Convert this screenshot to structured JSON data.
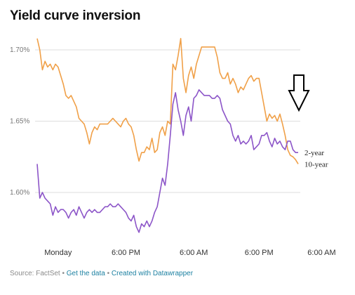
{
  "title": "Yield curve inversion",
  "footer": {
    "source": "Source: FactSet",
    "sep1": "•",
    "get_data": "Get the data",
    "sep2": "•",
    "created_with": "Created with Datawrapper"
  },
  "chart_data": {
    "type": "line",
    "title": "Yield curve inversion",
    "ylim": [
      1.58,
      1.71
    ],
    "y_ticks": [
      1.6,
      1.65,
      1.7
    ],
    "y_tick_labels": [
      "1.60%",
      "1.65%",
      "1.70%"
    ],
    "x_range": [
      0,
      100
    ],
    "x_ticks": [
      8,
      34,
      60,
      85,
      109
    ],
    "x_tick_labels": [
      "Monday",
      "6:00 PM",
      "6:00 AM",
      "6:00 PM",
      "6:00 AM"
    ],
    "grid": true,
    "annotation": "down-arrow",
    "series": [
      {
        "name": "10-year",
        "color": "#f0a048",
        "x": [
          0,
          1,
          2,
          3,
          4,
          5,
          6,
          7,
          8,
          9,
          10,
          11,
          12,
          13,
          14,
          15,
          16,
          17,
          18,
          19,
          20,
          21,
          22,
          23,
          24,
          25,
          26,
          27,
          28,
          29,
          30,
          31,
          32,
          33,
          34,
          35,
          36,
          37,
          38,
          39,
          40,
          41,
          42,
          43,
          44,
          45,
          46,
          47,
          48,
          49,
          50,
          51,
          52,
          53,
          54,
          55,
          56,
          57,
          58,
          59,
          60,
          61,
          62,
          63,
          64,
          65,
          66,
          67,
          68,
          69,
          70,
          71,
          72,
          73,
          74,
          75,
          76,
          77,
          78,
          79,
          80,
          81,
          82,
          83,
          84,
          85,
          86,
          87,
          88,
          89,
          90,
          91,
          92,
          93,
          94,
          95,
          96,
          97,
          98,
          99,
          100
        ],
        "values": [
          1.708,
          1.7,
          1.686,
          1.692,
          1.688,
          1.69,
          1.686,
          1.69,
          1.688,
          1.682,
          1.676,
          1.668,
          1.666,
          1.668,
          1.664,
          1.66,
          1.652,
          1.65,
          1.648,
          1.642,
          1.634,
          1.642,
          1.646,
          1.644,
          1.648,
          1.648,
          1.648,
          1.648,
          1.65,
          1.652,
          1.65,
          1.648,
          1.646,
          1.65,
          1.652,
          1.648,
          1.646,
          1.64,
          1.63,
          1.622,
          1.628,
          1.628,
          1.632,
          1.63,
          1.638,
          1.628,
          1.63,
          1.642,
          1.646,
          1.64,
          1.65,
          1.648,
          1.69,
          1.686,
          1.696,
          1.708,
          1.68,
          1.67,
          1.682,
          1.688,
          1.68,
          1.69,
          1.696,
          1.702,
          1.702,
          1.702,
          1.702,
          1.702,
          1.702,
          1.695,
          1.684,
          1.68,
          1.68,
          1.684,
          1.676,
          1.68,
          1.676,
          1.67,
          1.674,
          1.672,
          1.676,
          1.68,
          1.682,
          1.678,
          1.68,
          1.68,
          1.67,
          1.66,
          1.65,
          1.655,
          1.652,
          1.654,
          1.65,
          1.655,
          1.648,
          1.64,
          1.63,
          1.626,
          1.625,
          1.623,
          1.62
        ]
      },
      {
        "name": "2-year",
        "color": "#8c55c8",
        "x": [
          0,
          1,
          2,
          3,
          4,
          5,
          6,
          7,
          8,
          9,
          10,
          11,
          12,
          13,
          14,
          15,
          16,
          17,
          18,
          19,
          20,
          21,
          22,
          23,
          24,
          25,
          26,
          27,
          28,
          29,
          30,
          31,
          32,
          33,
          34,
          35,
          36,
          37,
          38,
          39,
          40,
          41,
          42,
          43,
          44,
          45,
          46,
          47,
          48,
          49,
          50,
          51,
          52,
          53,
          54,
          55,
          56,
          57,
          58,
          59,
          60,
          61,
          62,
          63,
          64,
          65,
          66,
          67,
          68,
          69,
          70,
          71,
          72,
          73,
          74,
          75,
          76,
          77,
          78,
          79,
          80,
          81,
          82,
          83,
          84,
          85,
          86,
          87,
          88,
          89,
          90,
          91,
          92,
          93,
          94,
          95,
          96,
          97,
          98,
          99,
          100
        ],
        "values": [
          1.62,
          1.596,
          1.6,
          1.596,
          1.594,
          1.592,
          1.584,
          1.59,
          1.586,
          1.588,
          1.588,
          1.586,
          1.582,
          1.586,
          1.588,
          1.584,
          1.59,
          1.586,
          1.582,
          1.586,
          1.588,
          1.586,
          1.588,
          1.586,
          1.586,
          1.588,
          1.59,
          1.59,
          1.592,
          1.59,
          1.59,
          1.592,
          1.59,
          1.588,
          1.586,
          1.582,
          1.58,
          1.584,
          1.576,
          1.572,
          1.578,
          1.576,
          1.58,
          1.576,
          1.58,
          1.586,
          1.59,
          1.6,
          1.61,
          1.605,
          1.62,
          1.64,
          1.662,
          1.67,
          1.658,
          1.65,
          1.64,
          1.654,
          1.66,
          1.65,
          1.666,
          1.668,
          1.672,
          1.67,
          1.668,
          1.668,
          1.668,
          1.666,
          1.666,
          1.668,
          1.666,
          1.658,
          1.654,
          1.65,
          1.648,
          1.64,
          1.636,
          1.64,
          1.634,
          1.636,
          1.634,
          1.636,
          1.64,
          1.63,
          1.632,
          1.634,
          1.64,
          1.64,
          1.642,
          1.636,
          1.632,
          1.638,
          1.634,
          1.636,
          1.632,
          1.63,
          1.636,
          1.636,
          1.63,
          1.628,
          1.628
        ]
      }
    ]
  }
}
